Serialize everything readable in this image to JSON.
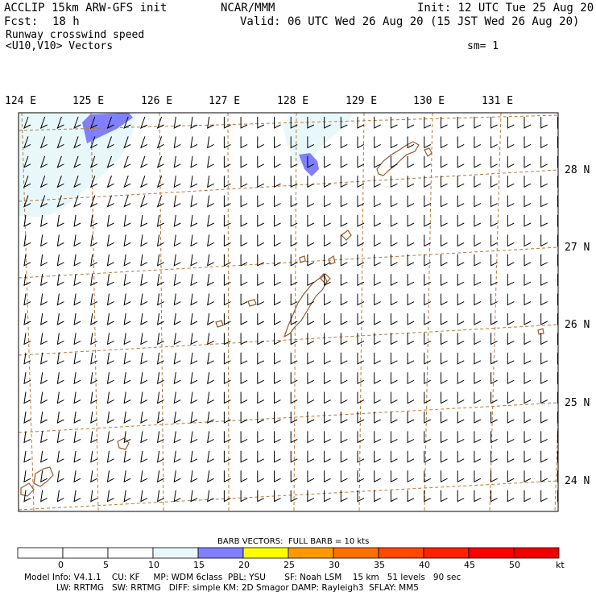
{
  "header": {
    "model": "ACCLIP 15km ARW-GFS init",
    "org": "NCAR/MMM",
    "init": "Init: 12 UTC Tue 25 Aug 20",
    "fcst_label": "Fcst:",
    "fcst_value": "18 h",
    "valid": "Valid: 06 UTC Wed 26 Aug 20 (15 JST Wed 26 Aug 20)",
    "field": "Runway crosswind speed",
    "vectors": "<U10,V10> Vectors",
    "smoothing": "sm= 1"
  },
  "map": {
    "lon_labels": [
      "124 E",
      "125 E",
      "126 E",
      "127 E",
      "128 E",
      "129 E",
      "130 E",
      "131 E"
    ],
    "lat_labels": [
      "28 N",
      "27 N",
      "26 N",
      "25 N",
      "24 N"
    ],
    "coast_color": "#9a5a2a",
    "grid_color": "#b87a3a",
    "wind_barbs": "westerly ~10 kt field, full barbs throughout"
  },
  "colorbar": {
    "title": "BARB VECTORS:  FULL BARB = 10 kts",
    "unit": "kt",
    "tick_labels": [
      "0",
      "5",
      "10",
      "15",
      "20",
      "25",
      "30",
      "35",
      "40",
      "45",
      "50"
    ],
    "colors": [
      "#ffffff",
      "#ffffff",
      "#ffffff",
      "#e8f8fa",
      "#8080ff",
      "#ffff00",
      "#ff9900",
      "#ff7000",
      "#ff4800",
      "#ff2000",
      "#ff0000",
      "#ee0000"
    ]
  },
  "footer": {
    "line1": "Model Info: V4.1.1    CU: KF     MP: WDM 6class  PBL: YSU       SF: Noah LSM    15 km   51 levels   90 sec",
    "line2": "LW: RRTMG   SW: RRTMG   DIFF: simple KM: 2D Smagor DAMP: Rayleigh3  SFLAY: MM5"
  }
}
